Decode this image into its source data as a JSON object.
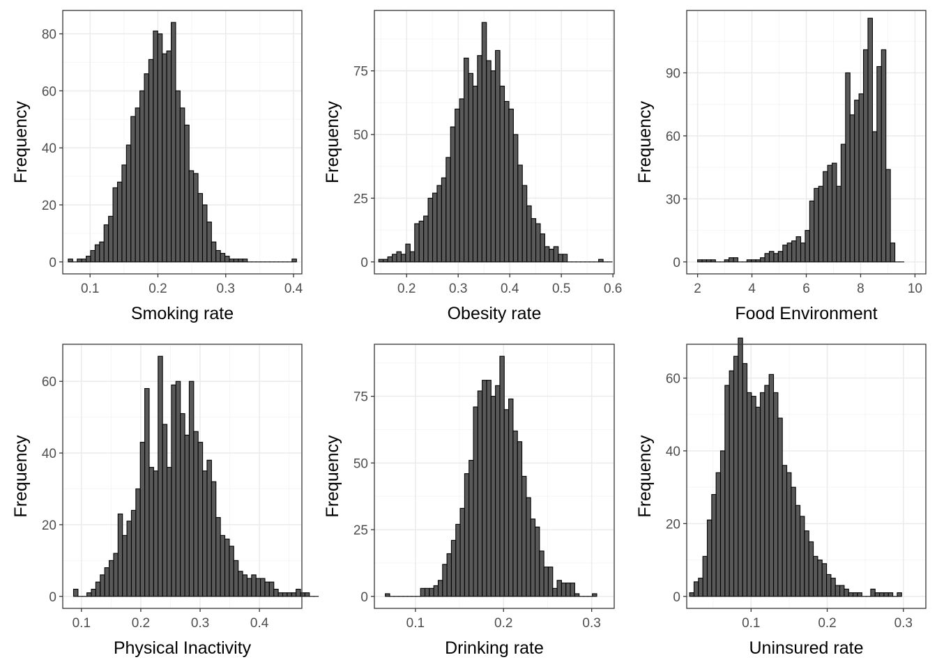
{
  "style": {
    "bar_fill": "#595959",
    "bar_stroke": "#000000",
    "grid_major": "#ebebeb",
    "grid_minor": "#f5f5f5",
    "panel_border": "#333333",
    "tick_text": "#4d4d4d"
  },
  "chart_data": [
    {
      "type": "bar",
      "xlabel": "Smoking rate",
      "ylabel": "Frequency",
      "grid": true,
      "xlim": [
        0.0597,
        0.4123
      ],
      "ylim": [
        -4.2,
        88.2
      ],
      "xticks": [
        0.1,
        0.2,
        0.3,
        0.4
      ],
      "xtick_labels": [
        "0.1",
        "0.2",
        "0.3",
        "0.4"
      ],
      "yticks": [
        0,
        20,
        40,
        60,
        80
      ],
      "ytick_labels": [
        "0",
        "20",
        "40",
        "60",
        "80"
      ],
      "bin_start": 0.0678,
      "bin_width": 0.0066,
      "values": [
        1,
        0,
        1,
        1,
        2,
        4,
        6,
        7,
        13,
        16,
        26,
        28,
        34,
        41,
        51,
        54,
        60,
        66,
        71,
        81,
        80,
        73,
        74,
        84,
        60,
        54,
        48,
        32,
        31,
        24,
        20,
        14,
        7,
        4,
        3,
        2,
        1,
        1,
        1,
        1,
        0,
        0,
        0,
        0,
        0,
        0,
        0,
        0,
        0,
        0,
        1
      ]
    },
    {
      "type": "bar",
      "xlabel": "Obesity rate",
      "ylabel": "Frequency",
      "grid": true,
      "xlim": [
        0.1375,
        0.6025
      ],
      "ylim": [
        -4.7,
        98.7
      ],
      "xticks": [
        0.2,
        0.3,
        0.4,
        0.5,
        0.6
      ],
      "xtick_labels": [
        "0.2",
        "0.3",
        "0.4",
        "0.5",
        "0.6"
      ],
      "yticks": [
        0,
        25,
        50,
        75
      ],
      "ytick_labels": [
        "0",
        "25",
        "50",
        "75"
      ],
      "bin_start": 0.146,
      "bin_width": 0.0087,
      "values": [
        1,
        1,
        2,
        3,
        4,
        3,
        7,
        4,
        15,
        16,
        18,
        25,
        27,
        30,
        33,
        41,
        53,
        60,
        64,
        80,
        74,
        69,
        81,
        94,
        79,
        75,
        83,
        69,
        63,
        60,
        50,
        38,
        30,
        22,
        17,
        15,
        11,
        6,
        5,
        6,
        3,
        3,
        0,
        0,
        0,
        0,
        0,
        0,
        0,
        1,
        0,
        0
      ]
    },
    {
      "type": "bar",
      "xlabel": "Food Environment",
      "ylabel": "Frequency",
      "grid": true,
      "xlim": [
        1.6,
        10.4
      ],
      "ylim": [
        -5.7,
        119.7
      ],
      "xticks": [
        2,
        4,
        6,
        8,
        10
      ],
      "xtick_labels": [
        "2",
        "4",
        "6",
        "8",
        "10"
      ],
      "yticks": [
        0,
        30,
        60,
        90
      ],
      "ytick_labels": [
        "0",
        "30",
        "60",
        "90"
      ],
      "bin_start": 2.0,
      "bin_width": 0.165,
      "values": [
        1,
        1,
        1,
        1,
        0,
        0,
        1,
        2,
        2,
        0,
        0,
        1,
        1,
        1,
        2,
        4,
        5,
        4,
        5,
        8,
        9,
        10,
        12,
        9,
        15,
        29,
        35,
        36,
        43,
        46,
        47,
        36,
        56,
        90,
        70,
        77,
        80,
        101,
        116,
        62,
        93,
        101,
        44,
        9,
        0,
        0
      ]
    },
    {
      "type": "bar",
      "xlabel": "Physical Inactivity",
      "ylabel": "Frequency",
      "grid": true,
      "xlim": [
        0.0685,
        0.4715
      ],
      "ylim": [
        -3.35,
        70.35
      ],
      "xticks": [
        0.1,
        0.2,
        0.3,
        0.4
      ],
      "xtick_labels": [
        "0.1",
        "0.2",
        "0.3",
        "0.4"
      ],
      "yticks": [
        0,
        20,
        40,
        60
      ],
      "ytick_labels": [
        "0",
        "20",
        "40",
        "60"
      ],
      "bin_start": 0.0867,
      "bin_width": 0.0075,
      "values": [
        2,
        0,
        0,
        1,
        2,
        4,
        6,
        8,
        10,
        12,
        23,
        17,
        21,
        24,
        30,
        43,
        58,
        36,
        35,
        67,
        48,
        36,
        59,
        60,
        51,
        45,
        60,
        46,
        43,
        35,
        38,
        32,
        22,
        17,
        16,
        14,
        10,
        7,
        6,
        5,
        6,
        5,
        5,
        4,
        4,
        2,
        1,
        1,
        1,
        1,
        2,
        1,
        1,
        0,
        0
      ]
    },
    {
      "type": "bar",
      "xlabel": "Drinking rate",
      "ylabel": "Frequency",
      "grid": true,
      "xlim": [
        0.0534,
        0.3256
      ],
      "ylim": [
        -4.5,
        94.5
      ],
      "xticks": [
        0.1,
        0.2,
        0.3
      ],
      "xtick_labels": [
        "0.1",
        "0.2",
        "0.3"
      ],
      "yticks": [
        0,
        25,
        50,
        75
      ],
      "ytick_labels": [
        "0",
        "25",
        "50",
        "75"
      ],
      "bin_start": 0.0658,
      "bin_width": 0.005,
      "values": [
        1,
        0,
        0,
        0,
        0,
        0,
        0,
        0,
        3,
        3,
        3,
        4,
        6,
        12,
        16,
        21,
        27,
        33,
        46,
        51,
        71,
        77,
        81,
        81,
        75,
        79,
        90,
        70,
        74,
        62,
        58,
        45,
        37,
        29,
        26,
        17,
        11,
        11,
        3,
        6,
        5,
        5,
        5,
        1,
        0,
        0,
        0,
        1
      ]
    },
    {
      "type": "bar",
      "xlabel": "Uninsured rate",
      "ylabel": "Frequency",
      "grid": true,
      "xlim": [
        0.0155,
        0.3295
      ],
      "ylim": [
        -3.3,
        69.3
      ],
      "xticks": [
        0.1,
        0.2,
        0.3
      ],
      "xtick_labels": [
        "0.1",
        "0.2",
        "0.3"
      ],
      "yticks": [
        0,
        20,
        40,
        60
      ],
      "ytick_labels": [
        "0",
        "20",
        "40",
        "60"
      ],
      "bin_start": 0.0193,
      "bin_width": 0.0058,
      "values": [
        1,
        4,
        5,
        11,
        21,
        28,
        34,
        40,
        58,
        62,
        66,
        71,
        64,
        56,
        55,
        52,
        56,
        58,
        61,
        56,
        49,
        36,
        34,
        30,
        25,
        22,
        18,
        15,
        11,
        10,
        9,
        6,
        5,
        3,
        3,
        2,
        1,
        1,
        1,
        0,
        0,
        2,
        1,
        1,
        1,
        1,
        0,
        1
      ]
    }
  ]
}
